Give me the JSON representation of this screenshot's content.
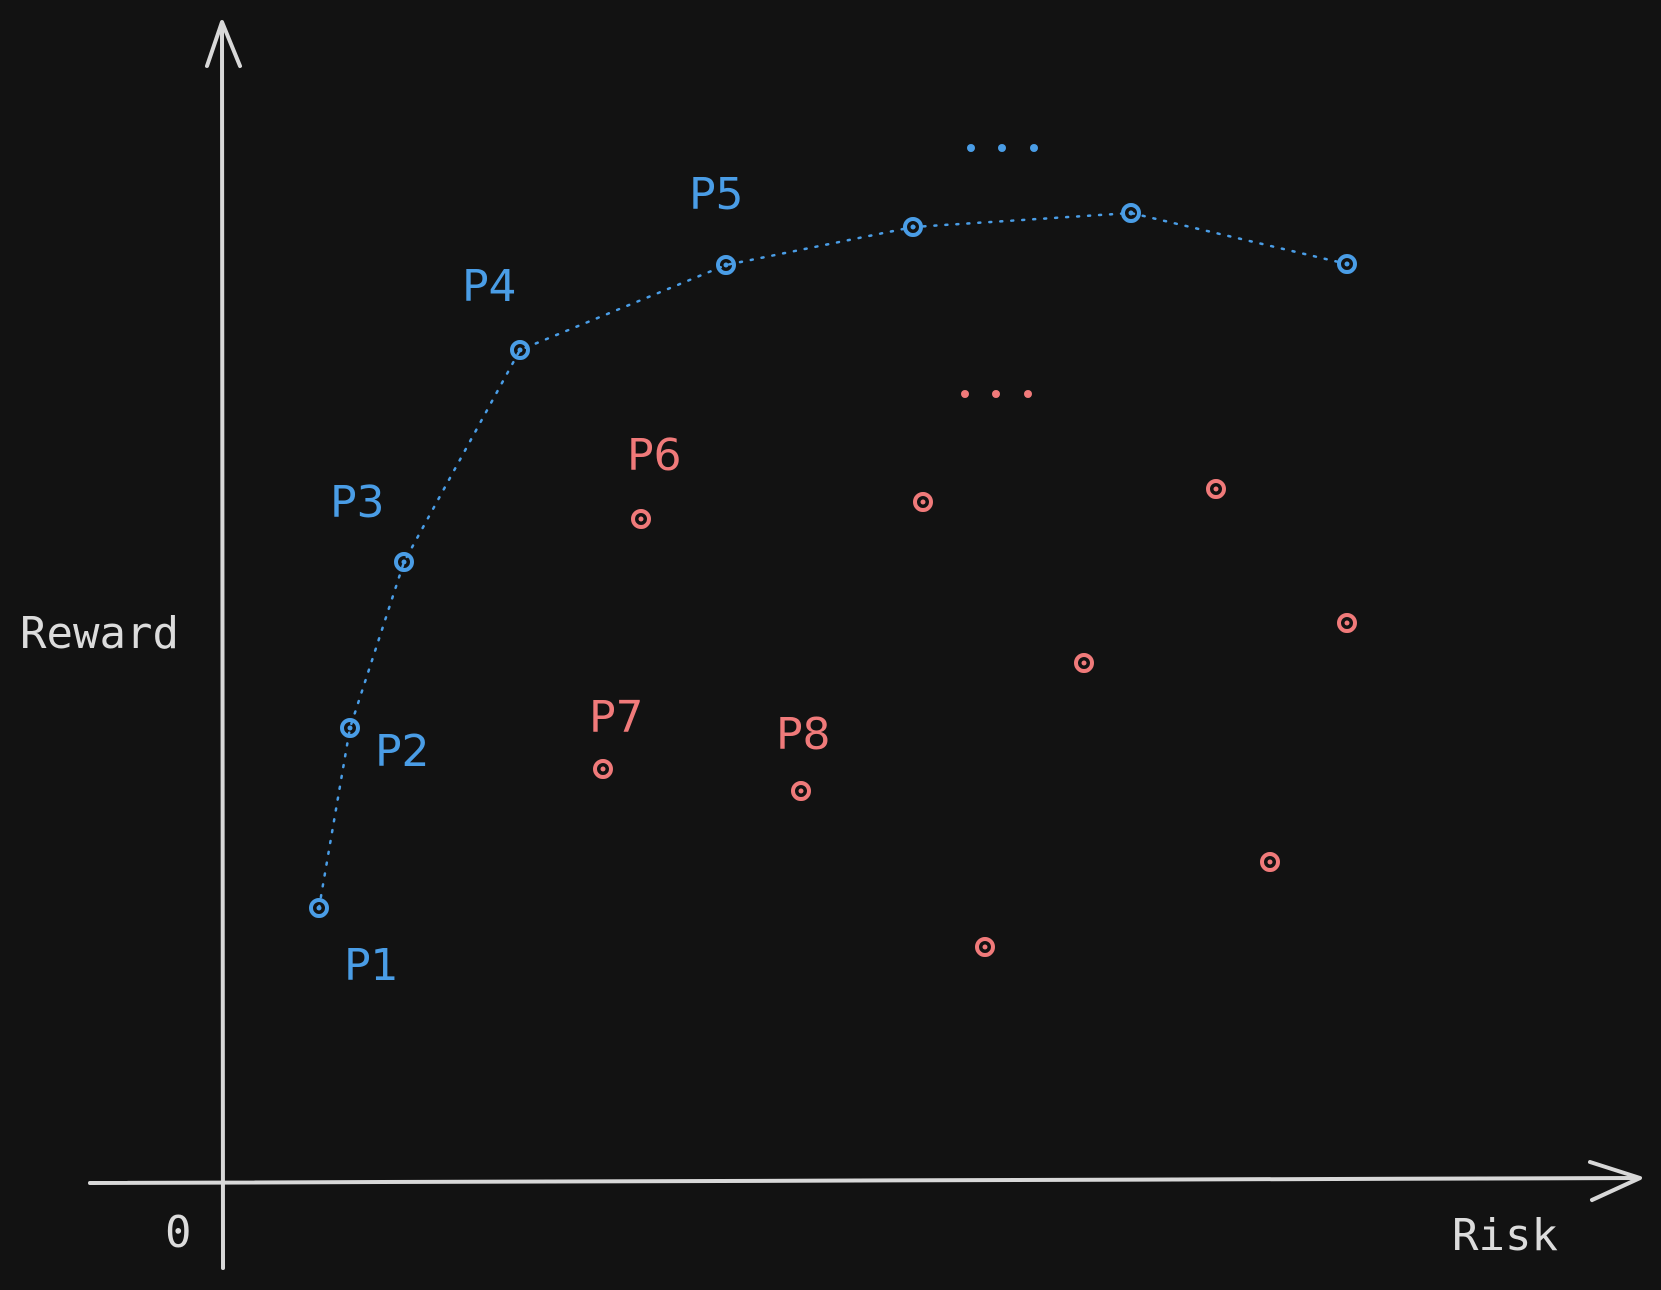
{
  "colors": {
    "background": "#121212",
    "axis": "#d8d8d8",
    "efficient": "#4a9de6",
    "inefficient": "#f07a7a"
  },
  "axes": {
    "x_label": "Risk",
    "y_label": "Reward",
    "origin_label": "0"
  },
  "efficient_points": {
    "labels": [
      "P1",
      "P2",
      "P3",
      "P4",
      "P5"
    ],
    "ellipsis": "..."
  },
  "inefficient_points": {
    "labels": [
      "P6",
      "P7",
      "P8"
    ],
    "ellipsis": "..."
  }
}
